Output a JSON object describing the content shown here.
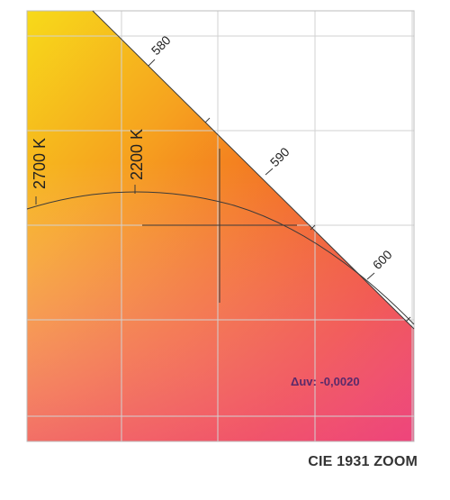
{
  "chart_data": {
    "type": "scatter",
    "title": "",
    "xlabel": "",
    "ylabel": "",
    "grid": true,
    "spectral_locus": {
      "labels": [
        "580",
        "590",
        "600"
      ]
    },
    "planckian_locus": {
      "cct_labels": [
        "2700 K",
        "2200 K"
      ]
    },
    "crosshair": {
      "delta_uv_label": "Δuv: -0,0020",
      "delta_uv": -0.002
    },
    "colors": {
      "background_gradient": [
        "#f5d21a",
        "#f7a020",
        "#f26a20",
        "#ee3a2a",
        "#e8185a",
        "#f06090"
      ],
      "grid": "#cfcfcf",
      "line": "#333333"
    }
  },
  "footer": {
    "caption": "CIE 1931 ZOOM"
  }
}
